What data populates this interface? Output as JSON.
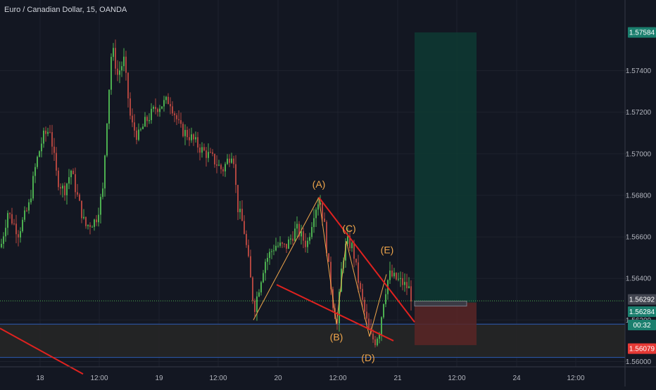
{
  "header": {
    "symbol_title": "Euro / Canadian Dollar, 15, OANDA"
  },
  "colors": {
    "background": "#131722",
    "grid": "#1e222d",
    "bull": "#26a69a",
    "bear": "#ef5350",
    "candle_up": "#4caf50",
    "candle_down": "#b0453f",
    "wave_line": "#f0a64b",
    "trend_line": "#e0221f",
    "zone_line": "#2d5bb5",
    "target_fill": "#0e3a33",
    "stop_fill": "#5a2626"
  },
  "chart_data": {
    "type": "candlestick",
    "instrument": "Euro / Canadian Dollar, 15, OANDA",
    "y_ticks": [
      1.56,
      1.562,
      1.564,
      1.566,
      1.568,
      1.57,
      1.572,
      1.574
    ],
    "y_tick_labels": [
      "1.56000",
      "1.56200",
      "1.56400",
      "1.56600",
      "1.56800",
      "1.57000",
      "1.57200",
      "1.57400"
    ],
    "ylim": [
      1.5588,
      1.5774
    ],
    "x_ticks": [
      "18",
      "12:00",
      "19",
      "12:00",
      "20",
      "12:00",
      "21",
      "12:00",
      "24",
      "12:00"
    ],
    "price_tags": [
      {
        "label": "1.57584",
        "value": 1.57584,
        "kind": "target"
      },
      {
        "label": "1.56292",
        "value": 1.56292,
        "kind": "last"
      },
      {
        "label": "1.56284",
        "value": 1.56284,
        "kind": "entry"
      },
      {
        "label": "00:32",
        "value": 1.56237,
        "kind": "countdown"
      },
      {
        "label": "1.56079",
        "value": 1.56079,
        "kind": "stop"
      }
    ],
    "wave_labels": [
      "(A)",
      "(B)",
      "(C)",
      "(D)",
      "(E)"
    ],
    "price_path": [
      [
        0,
        1.5655
      ],
      [
        10,
        1.5672
      ],
      [
        25,
        1.5662
      ],
      [
        40,
        1.5675
      ],
      [
        50,
        1.5695
      ],
      [
        60,
        1.5708
      ],
      [
        70,
        1.5712
      ],
      [
        80,
        1.5688
      ],
      [
        90,
        1.5682
      ],
      [
        100,
        1.5692
      ],
      [
        110,
        1.5678
      ],
      [
        120,
        1.5665
      ],
      [
        135,
        1.5668
      ],
      [
        145,
        1.5682
      ],
      [
        150,
        1.5712
      ],
      [
        158,
        1.5752
      ],
      [
        166,
        1.5738
      ],
      [
        175,
        1.5745
      ],
      [
        185,
        1.5715
      ],
      [
        195,
        1.5708
      ],
      [
        205,
        1.5715
      ],
      [
        220,
        1.5722
      ],
      [
        240,
        1.5726
      ],
      [
        255,
        1.5712
      ],
      [
        270,
        1.5708
      ],
      [
        285,
        1.5702
      ],
      [
        300,
        1.5698
      ],
      [
        315,
        1.5692
      ],
      [
        330,
        1.5702
      ],
      [
        336,
        1.5675
      ],
      [
        345,
        1.5665
      ],
      [
        352,
        1.5648
      ],
      [
        360,
        1.5625
      ],
      [
        375,
        1.5648
      ],
      [
        390,
        1.5656
      ],
      [
        405,
        1.5655
      ],
      [
        420,
        1.5664
      ],
      [
        435,
        1.5656
      ],
      [
        445,
        1.5672
      ],
      [
        453,
        1.5679
      ],
      [
        460,
        1.5665
      ],
      [
        466,
        1.5645
      ],
      [
        472,
        1.5628
      ],
      [
        478,
        1.5618
      ],
      [
        485,
        1.5648
      ],
      [
        492,
        1.5658
      ],
      [
        500,
        1.5655
      ],
      [
        510,
        1.5635
      ],
      [
        518,
        1.5622
      ],
      [
        525,
        1.5612
      ],
      [
        532,
        1.561
      ],
      [
        538,
        1.5615
      ],
      [
        545,
        1.5632
      ],
      [
        552,
        1.5642
      ],
      [
        560,
        1.564
      ],
      [
        570,
        1.5638
      ],
      [
        580,
        1.5635
      ],
      [
        585,
        1.5629
      ]
    ]
  }
}
